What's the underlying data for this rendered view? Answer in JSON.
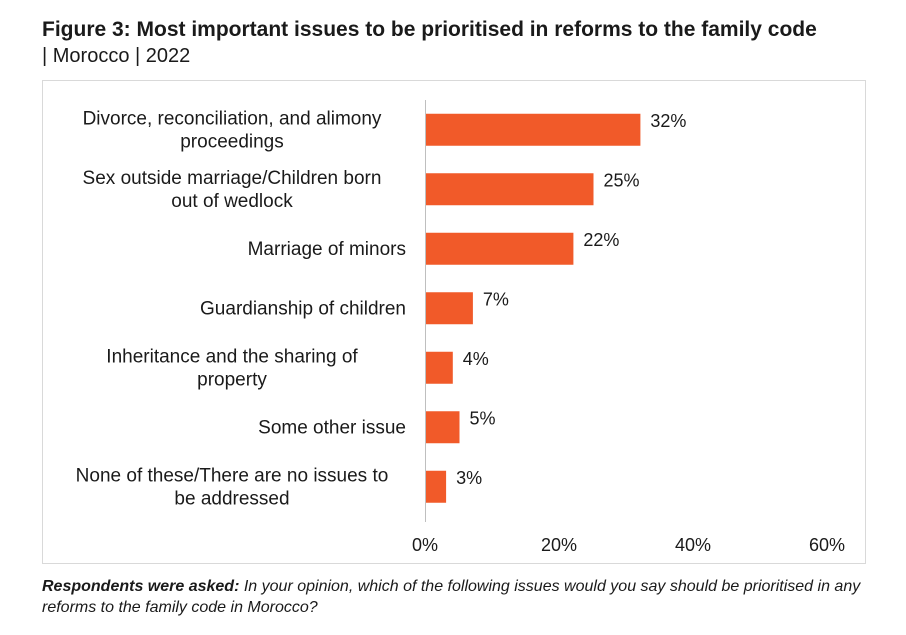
{
  "figure": {
    "title": "Figure 3: Most important issues to be prioritised in reforms to the family code",
    "subtitle": "| Morocco | 2022"
  },
  "footnote": {
    "lead": "Respondents were asked:",
    "question": "In your opinion, which of the following issues would you say should be prioritised in any reforms to the family code in Morocco?"
  },
  "chart_data": {
    "type": "bar",
    "orientation": "horizontal",
    "categories": [
      [
        "Divorce, reconciliation, and alimony",
        "proceedings"
      ],
      [
        "Sex outside marriage/Children born",
        "out of wedlock"
      ],
      [
        "Marriage of minors"
      ],
      [
        "Guardianship of children"
      ],
      [
        "Inheritance and the sharing of",
        "property"
      ],
      [
        "Some other issue"
      ],
      [
        "None of these/There are no issues to",
        "be addressed"
      ]
    ],
    "values": [
      32,
      25,
      22,
      7,
      4,
      5,
      3
    ],
    "value_labels": [
      "32%",
      "25%",
      "22%",
      "7%",
      "4%",
      "5%",
      "3%"
    ],
    "xlim": [
      0,
      60
    ],
    "xticks": [
      "0%",
      "20%",
      "40%",
      "60%"
    ],
    "bar_color": "#f15a29",
    "grid": false,
    "legend": "none"
  }
}
